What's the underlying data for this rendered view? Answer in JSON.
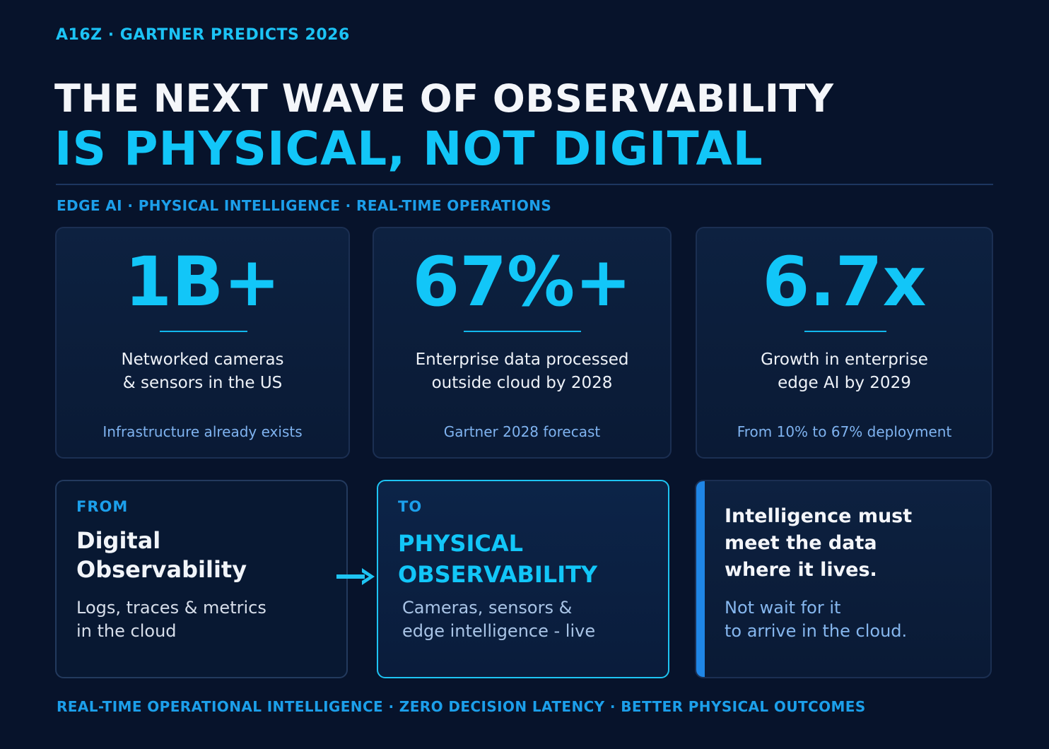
{
  "header": {
    "eyebrow": "A16Z · GARTNER PREDICTS 2026",
    "title_line1": "THE NEXT WAVE OF OBSERVABILITY",
    "title_line2": "IS PHYSICAL, NOT DIGITAL",
    "subhead": "EDGE AI · PHYSICAL INTELLIGENCE · REAL-TIME OPERATIONS"
  },
  "stats": [
    {
      "value": "1B+",
      "desc_line1": "Networked cameras",
      "desc_line2": "& sensors in the US",
      "note": "Infrastructure already exists"
    },
    {
      "value": "67%+",
      "desc_line1": "Enterprise data processed",
      "desc_line2": "outside cloud by 2028",
      "note": "Gartner 2028 forecast"
    },
    {
      "value": "6.7x",
      "desc_line1": "Growth in enterprise",
      "desc_line2": "edge AI by 2029",
      "note": "From 10% to 67% deployment"
    }
  ],
  "shift": {
    "from": {
      "label": "FROM",
      "title_line1": "Digital",
      "title_line2": "Observability",
      "body_line1": "Logs, traces & metrics",
      "body_line2": "in the cloud"
    },
    "to": {
      "label": "TO",
      "title_line1": "PHYSICAL",
      "title_line2": "OBSERVABILITY",
      "body_line1": "Cameras, sensors &",
      "body_line2": "edge intelligence - live"
    },
    "arrow_icon": "arrow-right-icon"
  },
  "insight": {
    "title_line1": "Intelligence must",
    "title_line2": "meet the data",
    "title_line3": "where it lives.",
    "body_line1": "Not wait for it",
    "body_line2": "to arrive in the cloud."
  },
  "footer": "REAL-TIME OPERATIONAL INTELLIGENCE · ZERO DECISION LATENCY · BETTER PHYSICAL OUTCOMES",
  "colors": {
    "background": "#07132b",
    "accent_cyan": "#12c6f8",
    "accent_blue": "#1c9fea",
    "note_blue": "#7fb3f0"
  }
}
